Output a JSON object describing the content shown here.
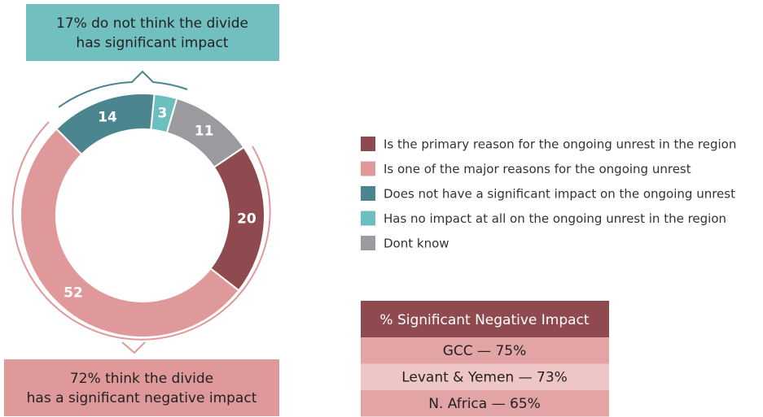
{
  "chart_data": {
    "type": "donut",
    "categories": [
      "Is the primary reason for the ongoing unrest in the region",
      "Is one of the major reasons for the ongoing unrest",
      "Does not have a significant impact on the ongoing unrest",
      "Has no impact at all on the ongoing unrest in the region",
      "Dont know"
    ],
    "values": [
      20,
      52,
      14,
      3,
      11
    ],
    "colors": [
      "#8e4a4f",
      "#e0999b",
      "#4a8590",
      "#6dbfbf",
      "#9b9b9f"
    ],
    "annotations": [
      [
        "17% do not think the divide",
        "has significant impact"
      ],
      [
        "72% think the divide",
        "has a significant negative impact"
      ]
    ]
  },
  "table": {
    "header": "% Significant Negative Impact",
    "rows": [
      "GCC — 75%",
      "Levant & Yemen — 73%",
      "N. Africa — 65%"
    ]
  }
}
